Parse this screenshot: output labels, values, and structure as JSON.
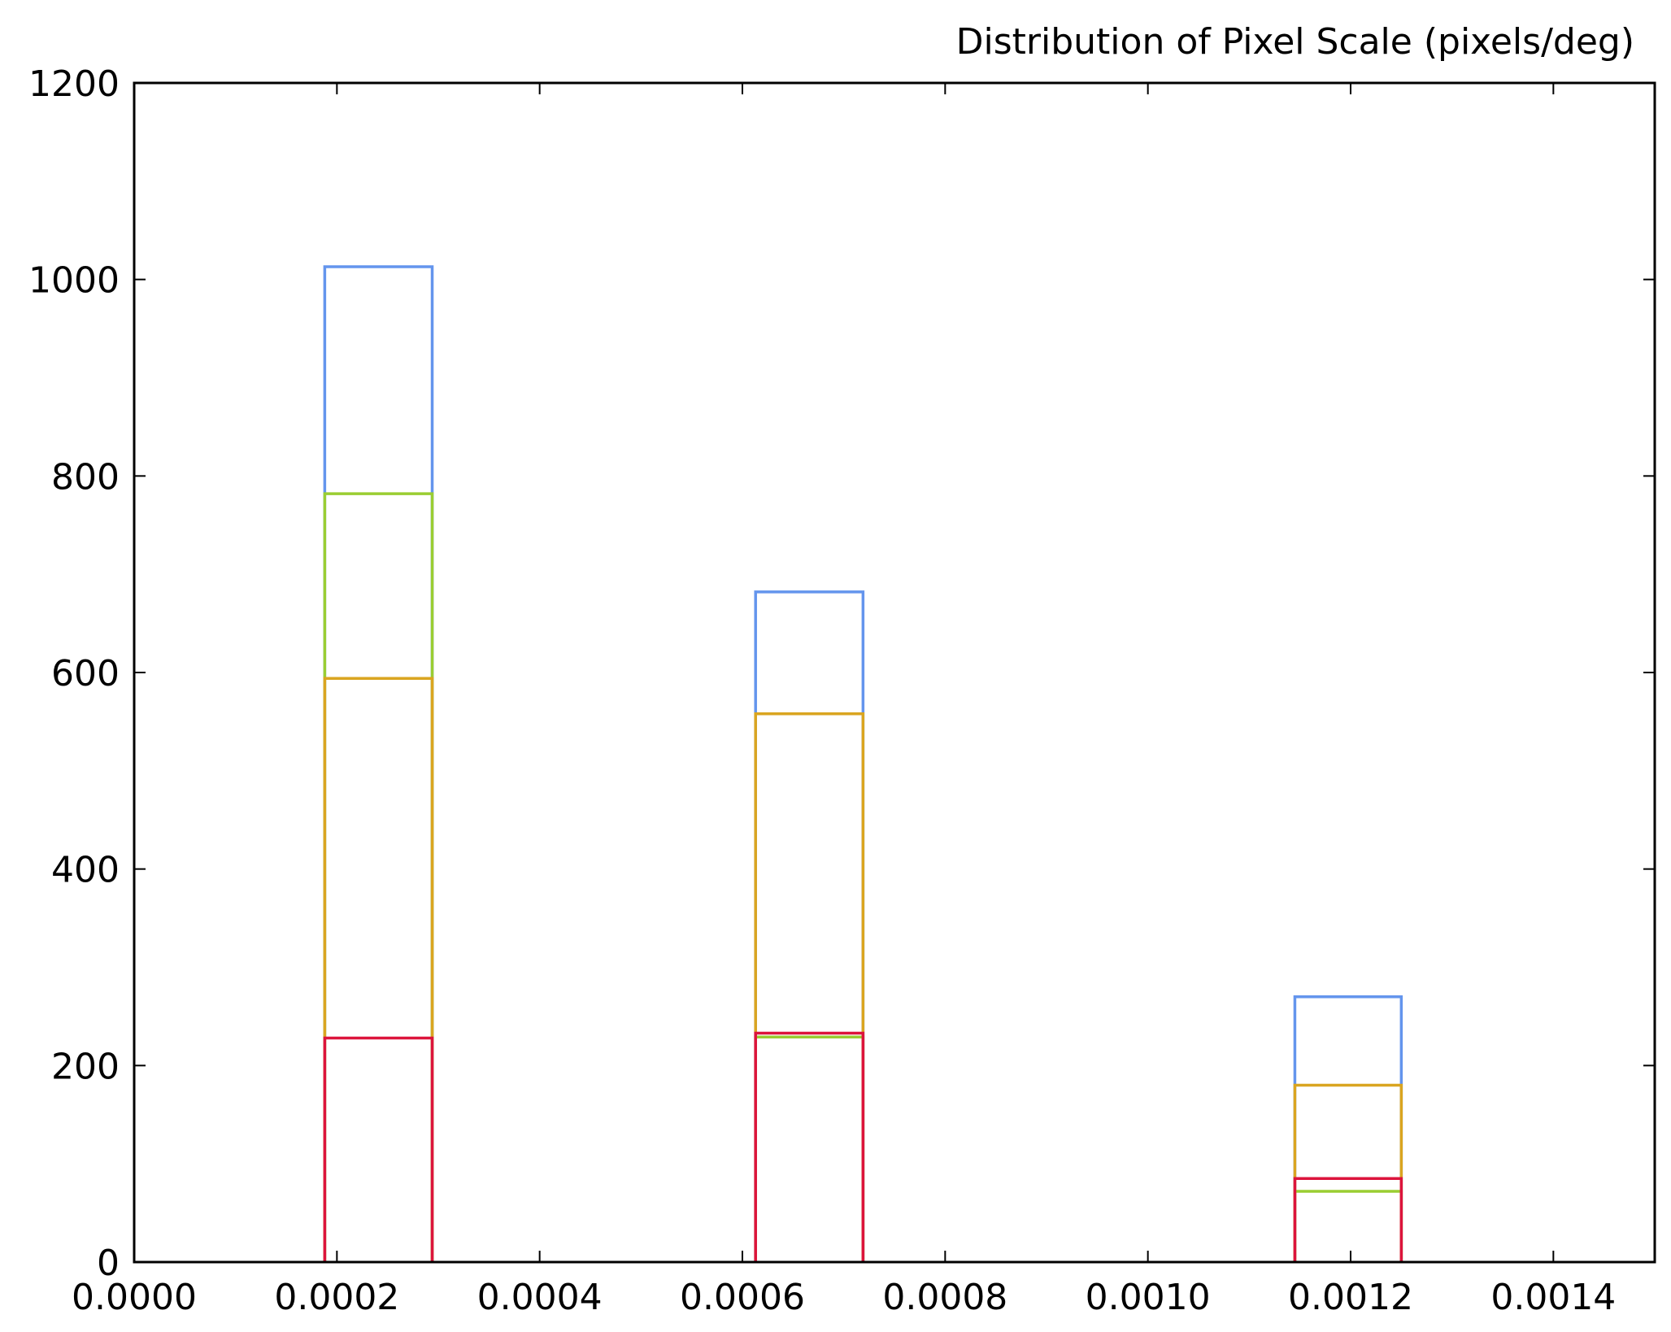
{
  "chart_data": {
    "type": "histogram",
    "title": "Distribution of Pixel Scale (pixels/deg)",
    "xlabel": "",
    "ylabel": "",
    "xlim": [
      0.0,
      0.0015
    ],
    "ylim": [
      0,
      1200
    ],
    "x_ticks": [
      "0.0000",
      "0.0002",
      "0.0004",
      "0.0006",
      "0.0008",
      "0.0010",
      "0.0012",
      "0.0014"
    ],
    "y_ticks": [
      "0",
      "200",
      "400",
      "600",
      "800",
      "1000",
      "1200"
    ],
    "grid": false,
    "legend": "none",
    "bins": [
      [
        0.000188,
        0.000294
      ],
      [
        0.000613,
        0.000719
      ],
      [
        0.001145,
        0.00125
      ]
    ],
    "series": [
      {
        "color": "#6495ED",
        "values": [
          1013,
          682,
          270
        ]
      },
      {
        "color": "#9ACD32",
        "values": [
          782,
          229,
          72
        ]
      },
      {
        "color": "#DAA520",
        "values": [
          594,
          558,
          180
        ]
      },
      {
        "color": "#DC143C",
        "values": [
          228,
          233,
          85
        ]
      }
    ]
  }
}
